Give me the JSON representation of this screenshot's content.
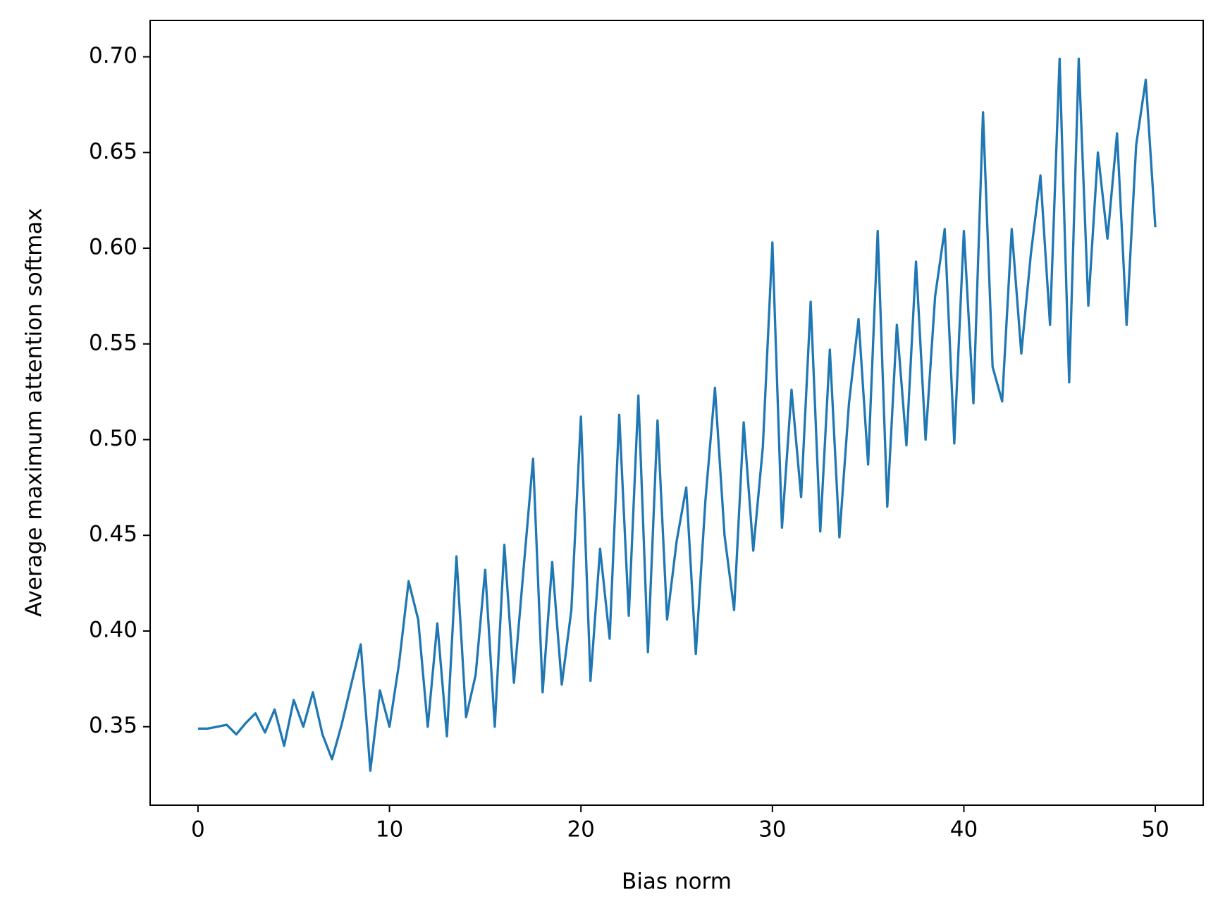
{
  "chart_data": {
    "type": "line",
    "x_label": "Bias norm",
    "y_label": "Average maximum attention softmax",
    "x": [
      0,
      0.5,
      1,
      1.5,
      2,
      2.5,
      3,
      3.5,
      4,
      4.5,
      5,
      5.5,
      6,
      6.5,
      7,
      7.5,
      8,
      8.5,
      9,
      9.5,
      10,
      10.5,
      11,
      11.5,
      12,
      12.5,
      13,
      13.5,
      14,
      14.5,
      15,
      15.5,
      16,
      16.5,
      17,
      17.5,
      18,
      18.5,
      19,
      19.5,
      20,
      20.5,
      21,
      21.5,
      22,
      22.5,
      23,
      23.5,
      24,
      24.5,
      25,
      25.5,
      26,
      26.5,
      27,
      27.5,
      28,
      28.5,
      29,
      29.5,
      30,
      30.5,
      31,
      31.5,
      32,
      32.5,
      33,
      33.5,
      34,
      34.5,
      35,
      35.5,
      36,
      36.5,
      37,
      37.5,
      38,
      38.5,
      39,
      39.5,
      40,
      40.5,
      41,
      41.5,
      42,
      42.5,
      43,
      43.5,
      44,
      44.5,
      45,
      45.5,
      46,
      46.5,
      47,
      47.5,
      48,
      48.5,
      49,
      49.5,
      50
    ],
    "series": [
      {
        "color": "#1f77b4",
        "values": [
          0.349,
          0.349,
          0.35,
          0.351,
          0.346,
          0.352,
          0.357,
          0.347,
          0.359,
          0.34,
          0.364,
          0.35,
          0.368,
          0.346,
          0.333,
          0.351,
          0.372,
          0.393,
          0.327,
          0.369,
          0.35,
          0.383,
          0.426,
          0.406,
          0.35,
          0.404,
          0.345,
          0.439,
          0.355,
          0.377,
          0.432,
          0.35,
          0.445,
          0.373,
          0.432,
          0.49,
          0.368,
          0.436,
          0.372,
          0.411,
          0.512,
          0.374,
          0.443,
          0.396,
          0.513,
          0.408,
          0.523,
          0.389,
          0.51,
          0.406,
          0.447,
          0.475,
          0.388,
          0.468,
          0.527,
          0.45,
          0.411,
          0.509,
          0.442,
          0.496,
          0.603,
          0.454,
          0.526,
          0.47,
          0.572,
          0.452,
          0.547,
          0.449,
          0.519,
          0.563,
          0.487,
          0.609,
          0.465,
          0.56,
          0.497,
          0.593,
          0.5,
          0.575,
          0.61,
          0.498,
          0.609,
          0.519,
          0.671,
          0.538,
          0.52,
          0.61,
          0.545,
          0.597,
          0.638,
          0.56,
          0.699,
          0.53,
          0.699,
          0.57,
          0.65,
          0.605,
          0.66,
          0.56,
          0.654,
          0.688,
          0.611
        ]
      }
    ],
    "xlim": [
      -2.5,
      52.5
    ],
    "xticks": [
      0,
      10,
      20,
      30,
      40,
      50
    ],
    "ylim": [
      0.309,
      0.719
    ],
    "yticks": [
      {
        "value": 0.35,
        "label": "0.35"
      },
      {
        "value": 0.4,
        "label": "0.40"
      },
      {
        "value": 0.45,
        "label": "0.45"
      },
      {
        "value": 0.5,
        "label": "0.50"
      },
      {
        "value": 0.55,
        "label": "0.55"
      },
      {
        "value": 0.6,
        "label": "0.60"
      },
      {
        "value": 0.65,
        "label": "0.65"
      },
      {
        "value": 0.7,
        "label": "0.70"
      }
    ]
  }
}
